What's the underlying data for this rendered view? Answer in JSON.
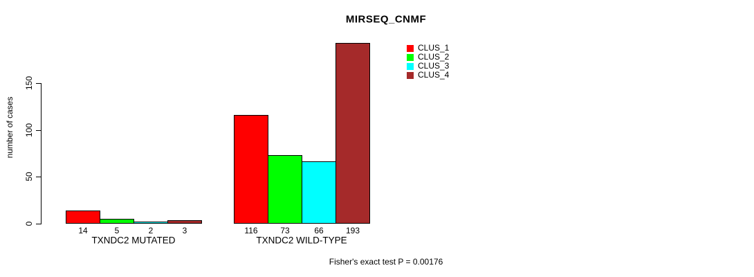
{
  "chart_data": {
    "type": "bar",
    "title": "MIRSEQ_CNMF",
    "ylabel": "number of cases",
    "xlabel": "",
    "categories": [
      "TXNDC2 MUTATED",
      "TXNDC2 WILD-TYPE"
    ],
    "series": [
      {
        "name": "CLUS_1",
        "color": "#ff0000",
        "values": [
          14,
          116
        ]
      },
      {
        "name": "CLUS_2",
        "color": "#00ff00",
        "values": [
          5,
          73
        ]
      },
      {
        "name": "CLUS_3",
        "color": "#00ffff",
        "values": [
          2,
          66
        ]
      },
      {
        "name": "CLUS_4",
        "color": "#a52a2a",
        "values": [
          3,
          193
        ]
      }
    ],
    "yticks": [
      0,
      50,
      100,
      150
    ],
    "ylim": [
      0,
      150
    ],
    "grid": false,
    "bar_value_labels_shown": true,
    "legend_position": "top-right-inside",
    "caption": "Fisher's exact test P = 0.00176",
    "axis_color": "#000000",
    "bar_border_color": "#000000",
    "background_color": "#ffffff"
  }
}
